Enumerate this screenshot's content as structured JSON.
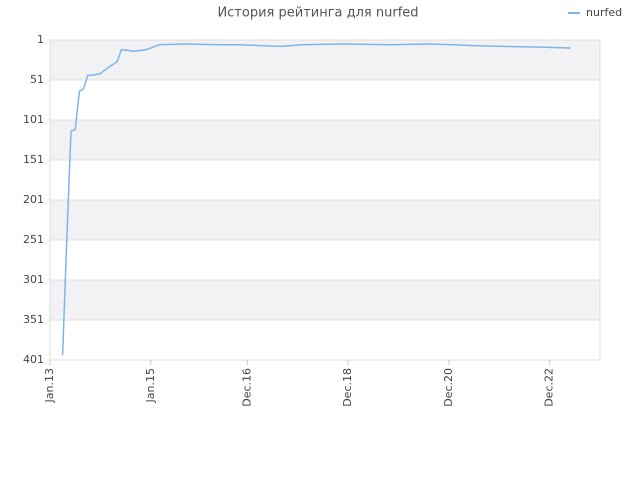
{
  "chart_data": {
    "type": "line",
    "title": "История рейтинга для nurfed",
    "x": [
      "2013-04",
      "2013-05",
      "2013-06",
      "2013-07",
      "2013-08",
      "2013-09",
      "2013-10",
      "2013-11",
      "2014-01",
      "2014-03",
      "2014-05",
      "2014-06",
      "2014-09",
      "2014-12",
      "2015-03",
      "2015-09",
      "2016-06",
      "2016-10",
      "2017-08",
      "2018-01",
      "2018-11",
      "2019-10",
      "2020-07",
      "2021-01",
      "2021-06",
      "2022-01",
      "2022-11",
      "2023-05"
    ],
    "series": [
      {
        "name": "nurfed",
        "color": "#7cb5ec",
        "values": [
          395,
          250,
          115,
          113,
          65,
          62,
          45,
          45,
          43,
          35,
          28,
          13,
          15,
          13,
          7,
          6,
          7,
          7,
          9,
          7,
          6,
          7,
          6,
          7,
          8,
          9,
          10,
          11
        ]
      }
    ],
    "xlim": [
      "2013-01",
      "2023-12"
    ],
    "xticks": [
      {
        "value": "2013-01",
        "label": "Jan.13"
      },
      {
        "value": "2015-01",
        "label": "Jan.15"
      },
      {
        "value": "2016-12",
        "label": "Dec.16"
      },
      {
        "value": "2018-12",
        "label": "Dec.18"
      },
      {
        "value": "2020-12",
        "label": "Dec.20"
      },
      {
        "value": "2022-12",
        "label": "Dec.22"
      }
    ],
    "ylim": [
      401,
      1
    ],
    "yticks": [
      1,
      51,
      101,
      151,
      201,
      251,
      301,
      351,
      401
    ],
    "legend": "top-right"
  }
}
